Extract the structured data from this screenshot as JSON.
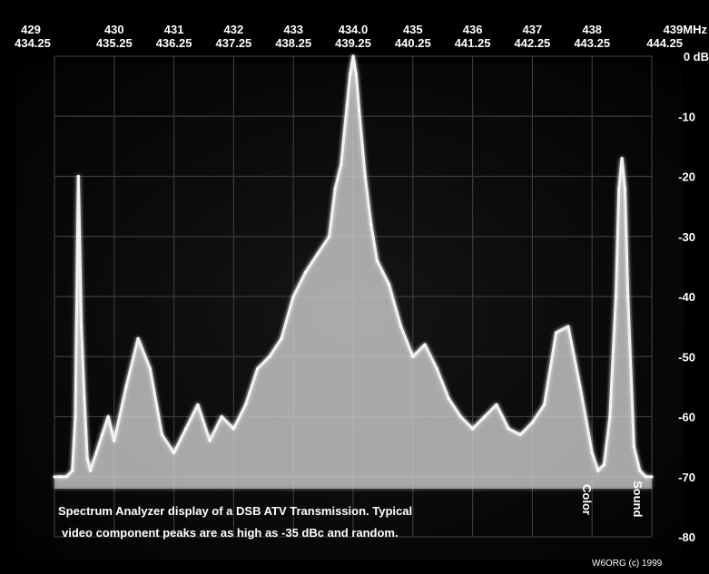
{
  "chart_data": {
    "type": "line",
    "x_top_labels": [
      "429",
      "430",
      "431",
      "432",
      "433",
      "434.0",
      "435",
      "436",
      "437",
      "438",
      "439MHz"
    ],
    "x_bottom_labels": [
      "434.25",
      "435.25",
      "436.25",
      "437.25",
      "438.25",
      "439.25",
      "440.25",
      "441.25",
      "442.25",
      "443.25",
      "444.25"
    ],
    "y_labels": [
      "0 dB",
      "-10",
      "-20",
      "-30",
      "-40",
      "-50",
      "-60",
      "-70",
      "-80"
    ],
    "ylim": [
      -80,
      0
    ],
    "xlim": [
      429,
      439
    ],
    "grid": true,
    "series": [
      {
        "x": [
          429.0,
          429.1,
          429.2,
          429.3,
          429.35,
          429.4,
          429.45,
          429.5,
          429.55,
          429.6,
          429.7,
          429.8,
          429.9,
          430.0,
          430.2,
          430.4,
          430.6,
          430.8,
          431.0,
          431.2,
          431.4,
          431.6,
          431.8,
          432.0,
          432.2,
          432.4,
          432.6,
          432.8,
          433.0,
          433.2,
          433.4,
          433.6,
          433.7,
          433.8,
          433.9,
          433.95,
          434.0,
          434.05,
          434.1,
          434.2,
          434.3,
          434.4,
          434.6,
          434.8,
          435.0,
          435.2,
          435.4,
          435.6,
          435.8,
          436.0,
          436.2,
          436.4,
          436.6,
          436.8,
          437.0,
          437.2,
          437.4,
          437.6,
          437.8,
          438.0,
          438.1,
          438.2,
          438.3,
          438.4,
          438.45,
          438.5,
          438.55,
          438.6,
          438.7,
          438.8,
          438.9,
          439.0
        ],
        "values": [
          -70,
          -70,
          -70,
          -69,
          -60,
          -20,
          -45,
          -57,
          -67,
          -69,
          -66,
          -63,
          -60,
          -64,
          -55,
          -47,
          -52,
          -63,
          -66,
          -62,
          -58,
          -64,
          -60,
          -62,
          -58,
          -52,
          -50,
          -47,
          -40,
          -36,
          -33,
          -30,
          -22,
          -18,
          -8,
          -3,
          0,
          -3,
          -9,
          -20,
          -28,
          -34,
          -38,
          -45,
          -50,
          -48,
          -52,
          -57,
          -60,
          -62,
          -60,
          -58,
          -62,
          -63,
          -61,
          -58,
          -46,
          -45,
          -55,
          -66,
          -69,
          -68,
          -60,
          -40,
          -22,
          -17,
          -22,
          -40,
          -65,
          -69,
          -70,
          -70
        ]
      }
    ],
    "annotations": [
      "Color",
      "Sound"
    ],
    "caption_line1": "Spectrum Analyzer display of a DSB ATV Transmission.  Typical",
    "caption_line2": "video component peaks are as high as -35 dBc and random.",
    "credit": "W6ORG (c) 1999"
  },
  "colors": {
    "background": "#ffffff",
    "screen": "#0a0a0a",
    "grid": "#3a3a3a",
    "trace": "#f2f2f2",
    "text": "#ffffff"
  }
}
